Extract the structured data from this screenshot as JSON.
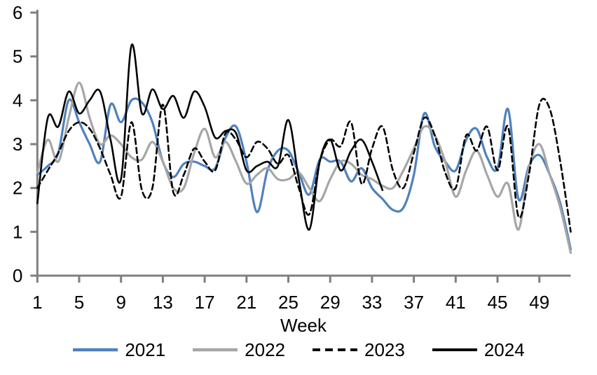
{
  "chart_data": {
    "type": "line",
    "title": "",
    "xlabel": "Week",
    "ylim": [
      0,
      6
    ],
    "y_ticks": [
      0,
      1,
      2,
      3,
      4,
      5,
      6
    ],
    "x_ticks": [
      1,
      5,
      9,
      13,
      17,
      21,
      25,
      29,
      33,
      37,
      41,
      45,
      49
    ],
    "x_range": [
      1,
      52
    ],
    "grid": false,
    "legend_position": "bottom",
    "axis_color": "#7F7F7F",
    "text_color": "#000000",
    "smoothed": true,
    "series": [
      {
        "name": "2021",
        "color": "#4F81BD",
        "style": "solid",
        "start_week": 1,
        "values": [
          2.3,
          2.5,
          2.8,
          4.0,
          3.5,
          3.0,
          2.6,
          3.9,
          3.5,
          4.0,
          3.95,
          3.5,
          2.6,
          2.25,
          2.55,
          2.6,
          2.5,
          2.45,
          3.15,
          3.4,
          2.6,
          1.45,
          2.4,
          2.85,
          2.85,
          2.35,
          1.85,
          2.65,
          2.6,
          2.6,
          2.15,
          2.45,
          2.0,
          1.75,
          1.5,
          1.55,
          2.3,
          3.7,
          2.95,
          2.6,
          2.4,
          3.1,
          3.35,
          2.7,
          2.45,
          3.8,
          1.75,
          2.5,
          2.75,
          2.3,
          1.65,
          0.6
        ]
      },
      {
        "name": "2022",
        "color": "#A6A6A6",
        "style": "solid",
        "start_week": 1,
        "values": [
          2.35,
          3.1,
          2.6,
          3.6,
          4.4,
          3.6,
          3.0,
          3.2,
          3.0,
          2.7,
          2.65,
          3.05,
          2.6,
          2.0,
          2.0,
          2.8,
          3.35,
          2.7,
          3.05,
          2.6,
          2.1,
          2.3,
          2.45,
          2.2,
          2.2,
          2.35,
          2.0,
          1.7,
          2.2,
          2.6,
          2.55,
          2.3,
          2.2,
          2.05,
          2.0,
          2.4,
          2.9,
          3.4,
          3.2,
          2.6,
          1.8,
          2.4,
          2.85,
          2.3,
          1.8,
          2.1,
          1.05,
          2.45,
          3.0,
          2.3,
          1.55,
          0.52
        ]
      },
      {
        "name": "2023",
        "color": "#000000",
        "style": "dashed",
        "start_week": 1,
        "values": [
          2.0,
          2.4,
          2.8,
          3.3,
          3.5,
          3.35,
          2.9,
          2.3,
          1.8,
          3.5,
          1.95,
          2.0,
          3.9,
          1.9,
          2.3,
          2.9,
          2.6,
          2.4,
          3.25,
          3.1,
          2.7,
          3.05,
          2.9,
          2.55,
          2.75,
          2.0,
          1.4,
          2.6,
          3.1,
          2.95,
          3.5,
          2.1,
          2.9,
          3.4,
          2.4,
          2.0,
          2.8,
          3.6,
          3.2,
          2.35,
          2.0,
          3.2,
          2.85,
          3.4,
          2.4,
          3.4,
          1.35,
          2.3,
          3.9,
          3.8,
          2.6,
          1.0
        ]
      },
      {
        "name": "2024",
        "color": "#000000",
        "style": "solid",
        "start_week": 1,
        "values": [
          1.65,
          3.6,
          3.4,
          4.2,
          3.7,
          4.0,
          4.2,
          3.1,
          2.2,
          5.25,
          3.7,
          4.25,
          3.8,
          4.1,
          3.6,
          4.2,
          3.85,
          3.15,
          3.3,
          3.25,
          2.4,
          2.5,
          2.6,
          2.5,
          3.55,
          2.2,
          1.05,
          2.6,
          3.1,
          2.4,
          2.85,
          3.1,
          2.6,
          1.95
        ]
      }
    ]
  }
}
